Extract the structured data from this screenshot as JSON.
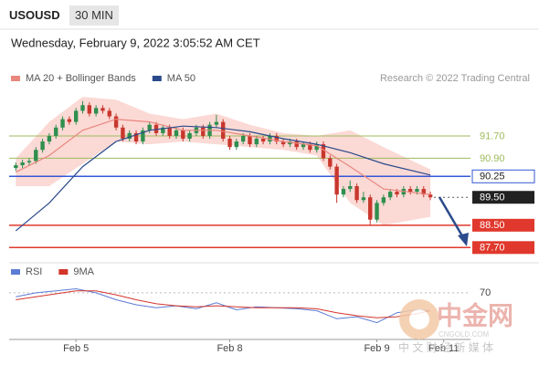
{
  "chart_data": [
    {
      "type": "candlestick",
      "symbol": "USOUSD",
      "timeframe": "30 MIN",
      "subtitle": "Wednesday, February 9, 2022 3:05:52 AM CET",
      "credit": "Research © 2022 Trading Central",
      "xlim": [
        -1,
        68
      ],
      "xticks": [
        {
          "value": 9,
          "label": "Feb 5"
        },
        {
          "value": 32,
          "label": "Feb 8"
        },
        {
          "value": 54,
          "label": "Feb 9"
        },
        {
          "value": 64,
          "label": "Feb 11"
        }
      ],
      "ylim": [
        87.35,
        93.3
      ],
      "up_color": "#2f8f4e",
      "down_color": "#c8372d",
      "candles": {
        "open": [
          90.55,
          90.65,
          90.75,
          90.8,
          91.2,
          91.5,
          91.7,
          92.0,
          92.3,
          92.2,
          92.6,
          92.8,
          92.5,
          92.7,
          92.6,
          92.4,
          92.0,
          91.6,
          91.8,
          91.5,
          91.9,
          92.1,
          91.8,
          92.0,
          91.7,
          91.9,
          91.6,
          91.8,
          92.0,
          91.7,
          92.1,
          92.2,
          91.6,
          91.3,
          91.5,
          91.7,
          91.4,
          91.6,
          91.5,
          91.7,
          91.5,
          91.4,
          91.5,
          91.3,
          91.4,
          91.2,
          91.4,
          90.9,
          90.6,
          89.6,
          89.8,
          89.9,
          89.4,
          89.5,
          88.7,
          89.3,
          89.5,
          89.7,
          89.6,
          89.8,
          89.7,
          89.8,
          89.6
        ],
        "high": [
          90.75,
          90.85,
          90.9,
          91.3,
          91.6,
          91.8,
          92.1,
          92.4,
          92.4,
          92.7,
          92.95,
          92.9,
          92.8,
          92.8,
          92.7,
          92.5,
          92.1,
          91.9,
          91.9,
          92.0,
          92.2,
          92.2,
          92.1,
          92.1,
          92.0,
          92.0,
          91.9,
          92.1,
          92.1,
          92.2,
          92.45,
          92.3,
          91.7,
          91.6,
          91.8,
          91.8,
          91.7,
          91.7,
          91.8,
          91.8,
          91.6,
          91.6,
          91.6,
          91.5,
          91.5,
          91.5,
          91.5,
          91.0,
          90.7,
          89.9,
          90.1,
          90.0,
          89.7,
          89.6,
          89.4,
          89.6,
          89.8,
          89.8,
          89.9,
          89.9,
          89.9,
          89.9,
          89.7
        ],
        "low": [
          90.45,
          90.55,
          90.65,
          90.7,
          91.1,
          91.4,
          91.6,
          91.9,
          92.1,
          92.1,
          92.5,
          92.4,
          92.4,
          92.5,
          92.3,
          91.9,
          91.5,
          91.5,
          91.4,
          91.4,
          91.8,
          91.7,
          91.7,
          91.6,
          91.6,
          91.5,
          91.5,
          91.7,
          91.6,
          91.6,
          92.0,
          91.5,
          91.2,
          91.2,
          91.4,
          91.3,
          91.3,
          91.4,
          91.4,
          91.4,
          91.3,
          91.3,
          91.2,
          91.2,
          91.1,
          91.1,
          90.8,
          90.5,
          89.3,
          89.5,
          89.7,
          89.3,
          89.3,
          88.5,
          88.6,
          89.2,
          89.4,
          89.5,
          89.5,
          89.6,
          89.6,
          89.5,
          89.4
        ],
        "close": [
          90.65,
          90.75,
          90.8,
          91.2,
          91.5,
          91.7,
          92.0,
          92.3,
          92.2,
          92.6,
          92.8,
          92.5,
          92.7,
          92.6,
          92.4,
          92.0,
          91.6,
          91.8,
          91.5,
          91.9,
          92.1,
          91.8,
          92.0,
          91.7,
          91.9,
          91.6,
          91.8,
          92.0,
          91.7,
          92.1,
          92.2,
          91.6,
          91.3,
          91.5,
          91.7,
          91.4,
          91.6,
          91.5,
          91.7,
          91.5,
          91.4,
          91.5,
          91.3,
          91.4,
          91.2,
          91.4,
          90.9,
          90.6,
          89.6,
          89.8,
          89.9,
          89.4,
          89.5,
          88.7,
          89.3,
          89.5,
          89.7,
          89.6,
          89.8,
          89.7,
          89.8,
          89.6,
          89.5
        ]
      },
      "band": {
        "color": "#fbd9d5",
        "x": [
          0,
          5,
          10,
          15,
          20,
          25,
          30,
          35,
          40,
          45,
          50,
          55,
          62
        ],
        "upper": [
          90.9,
          92.2,
          93.1,
          93.0,
          92.5,
          92.3,
          92.5,
          92.1,
          91.8,
          91.7,
          91.9,
          91.3,
          90.5
        ],
        "lower": [
          89.9,
          89.9,
          90.7,
          91.5,
          91.4,
          91.5,
          91.4,
          91.3,
          91.2,
          91.0,
          89.3,
          88.5,
          88.8
        ]
      },
      "series": [
        {
          "name": "MA 20 + Bollinger Bands",
          "color": "#e8877d",
          "x": [
            0,
            5,
            10,
            15,
            20,
            25,
            30,
            35,
            40,
            45,
            50,
            55,
            62
          ],
          "values": [
            90.4,
            91.0,
            91.9,
            92.3,
            92.2,
            91.9,
            91.9,
            91.7,
            91.5,
            91.35,
            90.6,
            89.8,
            89.6
          ]
        },
        {
          "name": "MA 50",
          "color": "#2b4a8b",
          "x": [
            0,
            5,
            10,
            15,
            20,
            25,
            30,
            35,
            40,
            45,
            50,
            55,
            62
          ],
          "values": [
            88.3,
            89.3,
            90.6,
            91.5,
            91.9,
            92.05,
            92.0,
            91.85,
            91.6,
            91.4,
            91.1,
            90.7,
            90.3
          ]
        }
      ],
      "levels": [
        {
          "value": 91.7,
          "label": "91.70",
          "color": "#9dbb5c",
          "style": "plain"
        },
        {
          "value": 90.9,
          "label": "90.90",
          "color": "#9dbb5c",
          "style": "plain"
        },
        {
          "value": 90.25,
          "label": "90.25",
          "color": "#3558d6",
          "style": "outline"
        },
        {
          "value": 89.5,
          "label": "89.50",
          "color": "#222222",
          "style": "current"
        },
        {
          "value": 88.5,
          "label": "88.50",
          "color": "#e0382c",
          "style": "filled"
        },
        {
          "value": 87.7,
          "label": "87.70",
          "color": "#e0382c",
          "style": "filled"
        }
      ]
    },
    {
      "type": "line",
      "xlim": [
        -1,
        68
      ],
      "ylim": [
        25,
        80
      ],
      "yticks": [
        70
      ],
      "series": [
        {
          "name": "RSI",
          "color": "#5b7bd5",
          "x": [
            0,
            3,
            6,
            9,
            12,
            15,
            18,
            21,
            24,
            27,
            30,
            33,
            36,
            39,
            42,
            45,
            48,
            51,
            54,
            57,
            60,
            62
          ],
          "values": [
            66,
            70,
            72,
            74,
            70,
            63,
            58,
            55,
            57,
            54,
            60,
            53,
            56,
            55,
            54,
            52,
            44,
            46,
            40,
            50,
            53,
            52
          ]
        },
        {
          "name": "9MA",
          "color": "#d3352b",
          "x": [
            0,
            3,
            6,
            9,
            12,
            15,
            18,
            21,
            24,
            27,
            30,
            33,
            36,
            39,
            42,
            45,
            48,
            51,
            54,
            57,
            60,
            62
          ],
          "values": [
            63,
            66,
            69,
            72,
            72,
            68,
            63,
            59,
            57,
            56,
            57,
            56,
            55,
            55,
            55,
            54,
            50,
            47,
            45,
            46,
            49,
            52
          ]
        }
      ]
    }
  ],
  "watermark": {
    "brand": "中金网",
    "site": "CNGOLD.COM",
    "slogan": "中 文 财 经 新 媒 体"
  }
}
